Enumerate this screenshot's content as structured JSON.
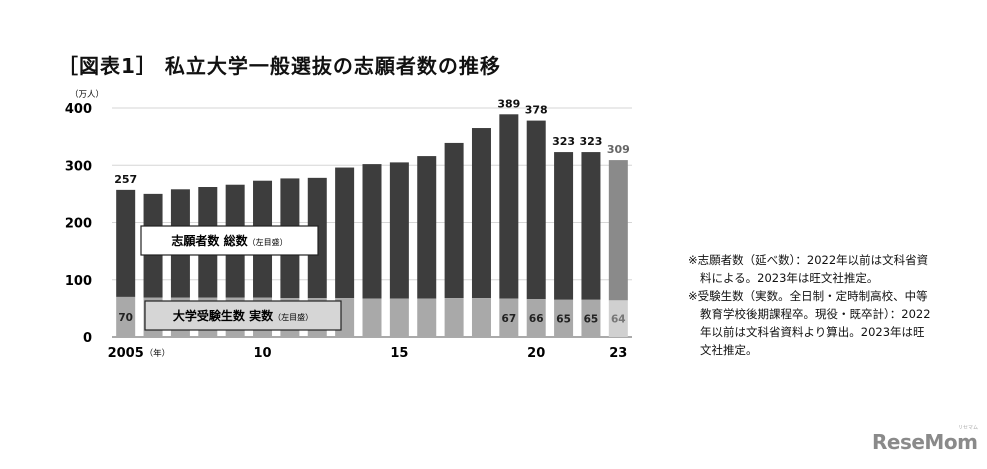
{
  "title": "［図表1］ 私立大学一般選抜の志願者数の推移",
  "chart_data": {
    "type": "bar",
    "unit_label": "（万人）",
    "categories": [
      "2005",
      "2006",
      "2007",
      "2008",
      "2009",
      "2010",
      "2011",
      "2012",
      "2013",
      "2014",
      "2015",
      "2016",
      "2017",
      "2018",
      "2019",
      "2020",
      "2021",
      "2022",
      "2023"
    ],
    "x_tick_labels": [
      {
        "category": "2005",
        "label": "2005",
        "suffix": "（年）"
      },
      {
        "category": "2010",
        "label": "10"
      },
      {
        "category": "2015",
        "label": "15"
      },
      {
        "category": "2020",
        "label": "20"
      },
      {
        "category": "2023",
        "label": "23"
      }
    ],
    "series": [
      {
        "name": "志願者数 総数",
        "name_suffix": "（左目盛）",
        "values": [
          257,
          250,
          258,
          262,
          266,
          273,
          277,
          278,
          296,
          302,
          305,
          316,
          339,
          365,
          389,
          378,
          323,
          323,
          309
        ]
      },
      {
        "name": "大学受験生数 実数",
        "name_suffix": "（左目盛）",
        "values": [
          70,
          69,
          69,
          69,
          69,
          69,
          68,
          68,
          68,
          67,
          67,
          67,
          68,
          68,
          67,
          66,
          65,
          65,
          64
        ]
      }
    ],
    "total_labels": [
      {
        "category": "2005",
        "text": "257"
      },
      {
        "category": "2019",
        "text": "389"
      },
      {
        "category": "2020",
        "text": "378"
      },
      {
        "category": "2021",
        "text": "323"
      },
      {
        "category": "2022",
        "text": "323"
      },
      {
        "category": "2023",
        "text": "309"
      }
    ],
    "inner_labels": [
      {
        "category": "2005",
        "text": "70"
      },
      {
        "category": "2019",
        "text": "67"
      },
      {
        "category": "2020",
        "text": "66"
      },
      {
        "category": "2021",
        "text": "65"
      },
      {
        "category": "2022",
        "text": "65"
      },
      {
        "category": "2023",
        "text": "64"
      }
    ],
    "y_ticks": [
      "0",
      "100",
      "200",
      "300",
      "400"
    ],
    "ylim": [
      0,
      400
    ],
    "grid": true,
    "estimate_category": "2023",
    "colors": {
      "total": "#3d3d3d",
      "actual": "#a9a9a9",
      "total_estimate": "#8a8a8a",
      "actual_estimate": "#d0d0d0",
      "grid": "#d6d6d6",
      "legend_total_bg": "#ffffff",
      "legend_actual_bg": "#d6d6d6",
      "estimate_label": "#666666"
    }
  },
  "notes": [
    "※志願者数（延べ数）：2022年以前は文科省資料による。2023年は旺文社推定。",
    "※受験生数（実数。全日制・定時制高校、中等教育学校後期課程卒。現役・既卒計）：2022年以前は文科省資料より算出。2023年は旺文社推定。"
  ],
  "brand": {
    "text": "ReseMom",
    "ruby": "リセマム"
  }
}
